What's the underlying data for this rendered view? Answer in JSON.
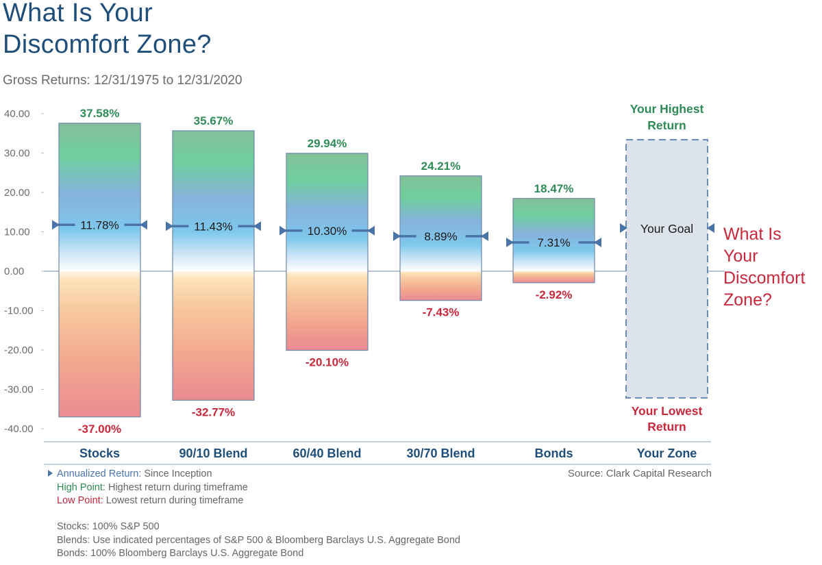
{
  "title_line1": "What Is Your",
  "title_line2": "Discomfort Zone?",
  "subtitle": "Gross Returns: 12/31/1975 to 12/31/2020",
  "colors": {
    "high": "#2e8b57",
    "low": "#c8283c",
    "category": "#1f4e79",
    "marker": "#4a74a8",
    "zone_fill": "#dde3ea",
    "zone_border": "#6b8cb5"
  },
  "chart_data": {
    "type": "bar",
    "ylim": [
      -40,
      40
    ],
    "yticks": [
      "40.00",
      "30.00",
      "20.00",
      "10.00",
      "0.00",
      "-10.00",
      "-20.00",
      "-30.00",
      "-40.00"
    ],
    "categories": [
      "Stocks",
      "90/10 Blend",
      "60/40 Blend",
      "30/70 Blend",
      "Bonds"
    ],
    "high_values": [
      37.58,
      35.67,
      29.94,
      24.21,
      18.47
    ],
    "high_labels": [
      "37.58%",
      "35.67%",
      "29.94%",
      "24.21%",
      "18.47%"
    ],
    "low_values": [
      -37.0,
      -32.77,
      -20.1,
      -7.43,
      -2.92
    ],
    "low_labels": [
      "-37.00%",
      "-32.77%",
      "-20.10%",
      "-7.43%",
      "-2.92%"
    ],
    "annualized_values": [
      11.78,
      11.43,
      10.3,
      8.89,
      7.31
    ],
    "annualized_labels": [
      "11.78%",
      "11.43%",
      "10.30%",
      "8.89%",
      "7.31%"
    ],
    "zone": {
      "category": "Your Zone",
      "high_label_line1": "Your Highest",
      "high_label_line2": "Return",
      "low_label_line1": "Your Lowest",
      "low_label_line2": "Return",
      "goal_label": "Your Goal",
      "side_label": [
        "What Is",
        "Your",
        "Discomfort",
        "Zone?"
      ]
    }
  },
  "legend": {
    "annualized_name": "Annualized Return:",
    "annualized_desc": "Since Inception",
    "high_name": "High Point:",
    "high_desc": "Highest return during timeframe",
    "low_name": "Low Point:",
    "low_desc": "Lowest return during timeframe"
  },
  "source": "Source: Clark Capital  Research",
  "footnotes": [
    "Stocks: 100% S&P 500",
    "Blends: Use indicated percentages of S&P 500 & Bloomberg Barclays U.S. Aggregate Bond",
    "Bonds: 100% Bloomberg Barclays U.S. Aggregate Bond"
  ]
}
